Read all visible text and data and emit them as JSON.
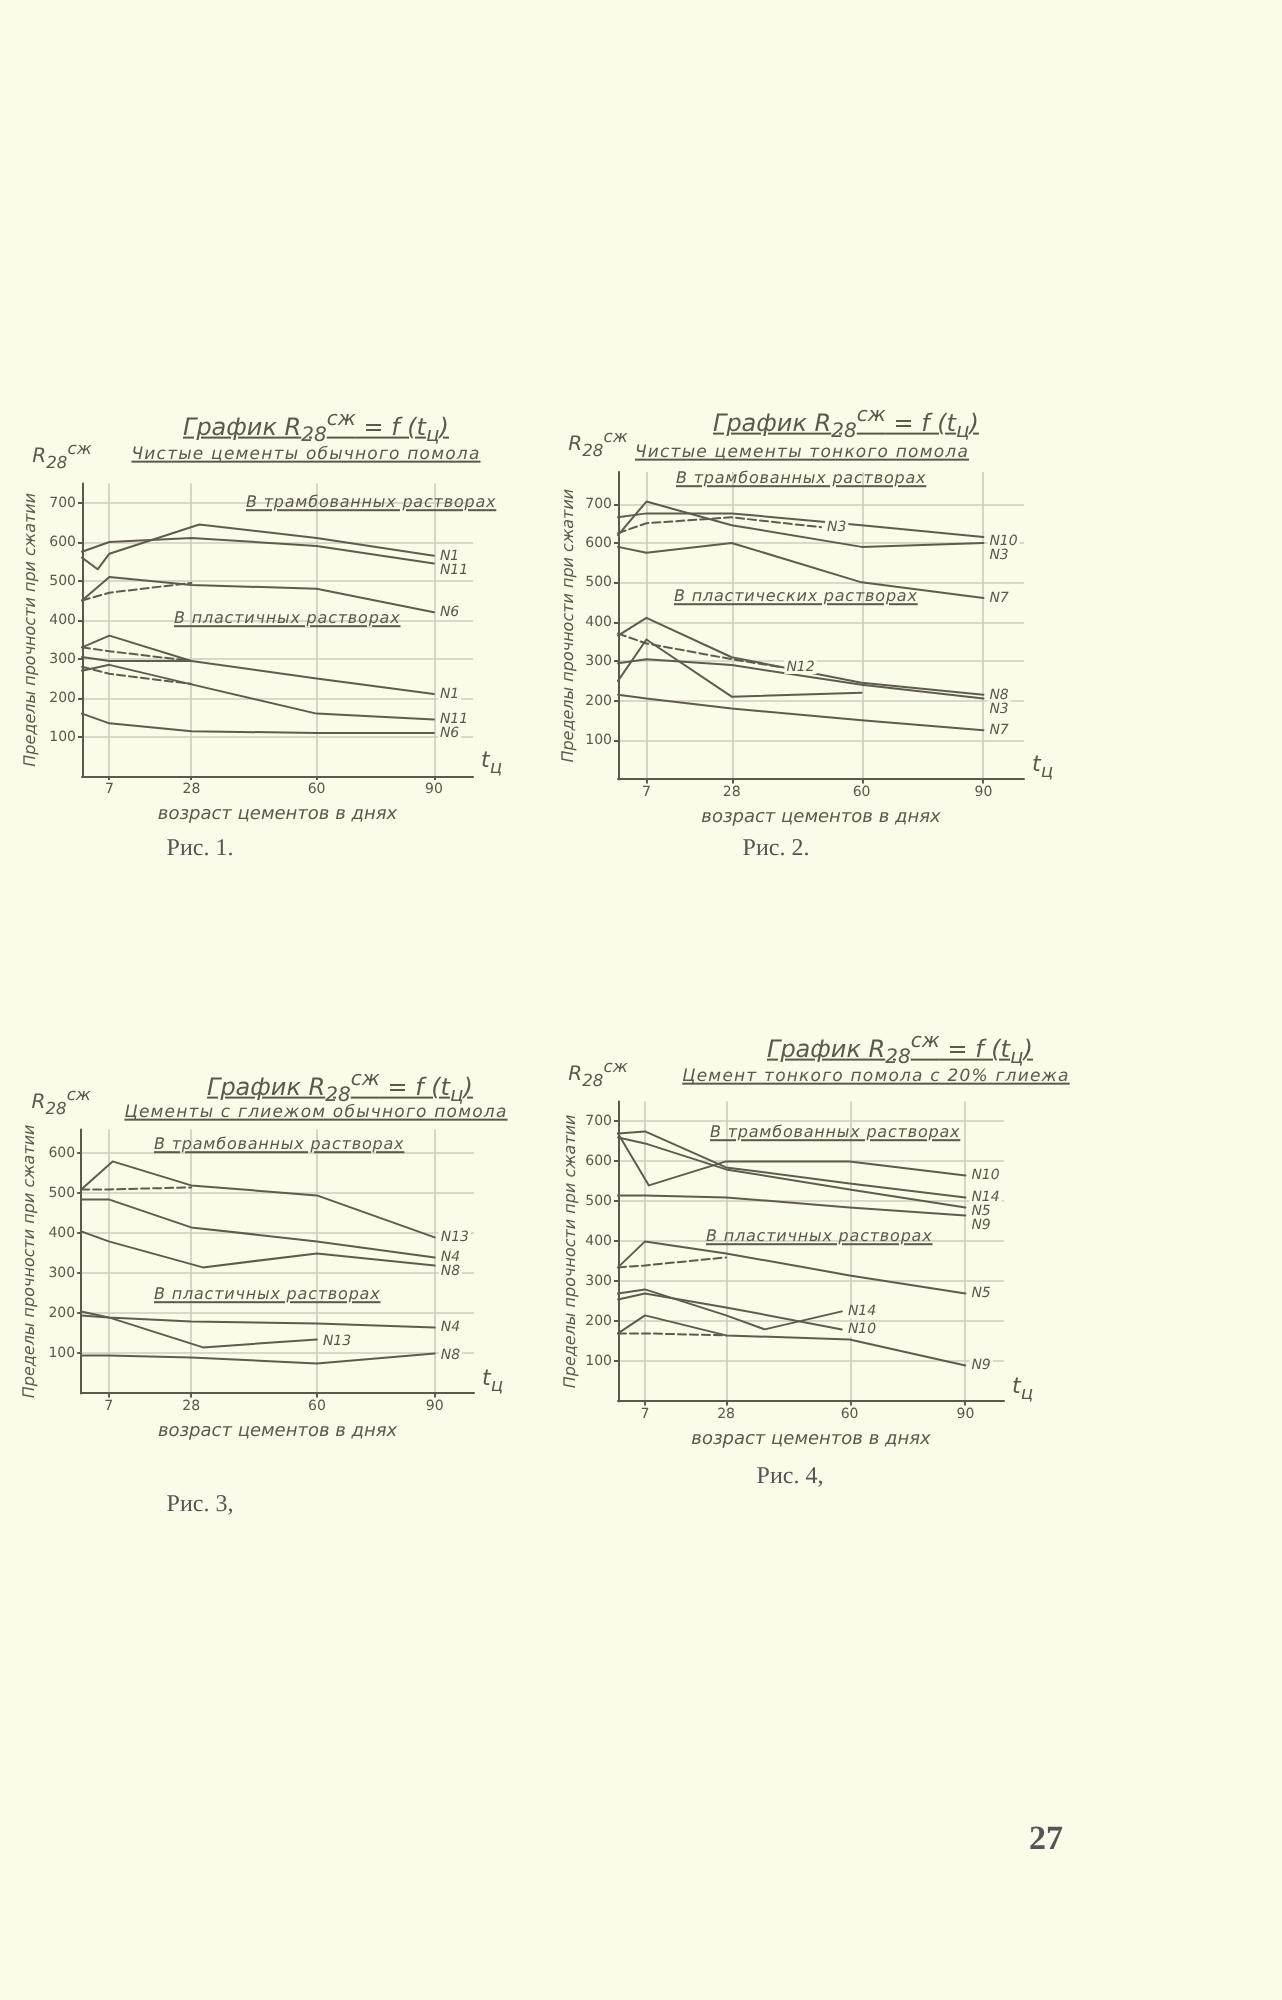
{
  "chart_data": [
    {
      "type": "line",
      "title": "График R$_{28}$$^{сж}$ = f (t$_{ц}$)",
      "subtitle": "Чистые цементы обычного помола",
      "xlabel": "возраст цементов в днях",
      "ylabel": "Пределы прочности при сжатии",
      "annotations": [
        "R$_{28}$$^{сж}$",
        "t$_{ц}$",
        "Рис. 1.",
        "В трамбованных растворах",
        "В пластичных растворах"
      ],
      "x": [
        0,
        7,
        28,
        60,
        90
      ],
      "xlim": [
        0,
        100
      ],
      "xticks": [
        7,
        28,
        60,
        90
      ],
      "ylim": [
        0,
        750
      ],
      "yticks": [
        100,
        200,
        300,
        400,
        500,
        600,
        700
      ],
      "grid": true,
      "line_style": "solid",
      "series": [
        {
          "name": "N1",
          "color": "#5f5b4f",
          "x": [
            0,
            4,
            7,
            30,
            60,
            90
          ],
          "values": [
            560,
            530,
            570,
            645,
            610,
            565
          ]
        },
        {
          "name": "N11",
          "color": "#5f5b4f",
          "values": [
            575,
            600,
            610,
            590,
            545
          ]
        },
        {
          "name": "N6",
          "color": "#5f5b4f",
          "values": [
            450,
            510,
            490,
            480,
            420
          ]
        },
        {
          "color": "#5f5b4f",
          "x": [
            0,
            7,
            28
          ],
          "values": [
            450,
            470,
            495
          ],
          "line_style": "dashed"
        },
        {
          "name": "N1",
          "color": "#5f5b4f",
          "values": [
            330,
            360,
            295,
            250,
            210
          ]
        },
        {
          "name": "N11",
          "color": "#5f5b4f",
          "values": [
            270,
            285,
            235,
            160,
            145
          ]
        },
        {
          "name": "N6",
          "color": "#5f5b4f",
          "values": [
            160,
            135,
            115,
            110,
            110
          ]
        },
        {
          "color": "#5f5b4f",
          "x": [
            0,
            7,
            28
          ],
          "values": [
            330,
            320,
            295
          ],
          "line_style": "dashed"
        },
        {
          "color": "#5f5b4f",
          "x": [
            0,
            7,
            28
          ],
          "values": [
            280,
            262,
            236
          ],
          "line_style": "dashed"
        },
        {
          "color": "#5f5b4f",
          "x": [
            0,
            7,
            28
          ],
          "values": [
            305,
            295,
            295
          ]
        }
      ]
    },
    {
      "type": "line",
      "title": "График R$_{28}$$^{сж}$ = f (t$_{ц}$)",
      "subtitle": "Чистые цементы тонкого помола",
      "xlabel": "возраст цементов в днях",
      "ylabel": "Пределы прочности при сжатии",
      "annotations": [
        "R$_{28}$$^{сж}$",
        "t$_{ц}$",
        "Рис. 2.",
        "В трамбованных растворах",
        "В пластических растворах"
      ],
      "x": [
        0,
        7,
        28,
        60,
        90
      ],
      "xlim": [
        0,
        100
      ],
      "xticks": [
        7,
        28,
        60,
        90
      ],
      "ylim": [
        0,
        780
      ],
      "yticks": [
        100,
        200,
        300,
        400,
        500,
        600,
        700
      ],
      "grid": true,
      "line_style": "solid",
      "series": [
        {
          "name": "N10",
          "color": "#5f5b4f",
          "values": [
            665,
            675,
            675,
            645,
            615
          ]
        },
        {
          "name": "N3",
          "color": "#5f5b4f",
          "values": [
            620,
            705,
            645,
            590,
            600
          ]
        },
        {
          "name": "N7",
          "color": "#5f5b4f",
          "values": [
            590,
            575,
            600,
            500,
            460
          ]
        },
        {
          "name": "N3",
          "color": "#5f5b4f",
          "x": [
            0,
            7,
            28,
            50
          ],
          "values": [
            625,
            650,
            665,
            640
          ],
          "line_style": "dashed"
        },
        {
          "name": "N8",
          "color": "#5f5b4f",
          "values": [
            365,
            410,
            310,
            245,
            215
          ]
        },
        {
          "name": "N3",
          "color": "#5f5b4f",
          "values": [
            295,
            305,
            290,
            240,
            205
          ]
        },
        {
          "color": "#5f5b4f",
          "x": [
            0,
            7,
            28,
            60
          ],
          "values": [
            250,
            355,
            210,
            220
          ]
        },
        {
          "name": "N7",
          "color": "#5f5b4f",
          "values": [
            215,
            205,
            180,
            150,
            125
          ]
        },
        {
          "name": "N12",
          "color": "#5f5b4f",
          "x": [
            0,
            7,
            28,
            40
          ],
          "values": [
            370,
            345,
            305,
            285
          ],
          "line_style": "dashed"
        }
      ]
    },
    {
      "type": "line",
      "title": "График R$_{28}$$^{сж}$ = f (t$_{ц}$)",
      "subtitle": "Цементы с глиежом обычного помола",
      "xlabel": "возраст цементов в днях",
      "ylabel": "Пределы прочности при сжатии",
      "annotations": [
        "R$_{28}$$^{сж}$",
        "t$_{ц}$",
        "Рис. 3,",
        "В трамбованных растворах",
        "В пластичных растворах"
      ],
      "x": [
        0,
        7,
        28,
        60,
        90
      ],
      "xlim": [
        0,
        100
      ],
      "xticks": [
        7,
        28,
        60,
        90
      ],
      "ylim": [
        0,
        660
      ],
      "yticks": [
        100,
        200,
        300,
        400,
        500,
        600
      ],
      "grid": true,
      "line_style": "solid",
      "series": [
        {
          "name": "N13",
          "color": "#5f5b4f",
          "x": [
            0,
            8,
            28,
            60,
            90
          ],
          "values": [
            510,
            580,
            520,
            495,
            390
          ]
        },
        {
          "color": "#5f5b4f",
          "x": [
            0,
            7,
            28
          ],
          "values": [
            510,
            510,
            515
          ],
          "line_style": "dashed"
        },
        {
          "name": "N4",
          "color": "#5f5b4f",
          "values": [
            485,
            485,
            415,
            380,
            340
          ]
        },
        {
          "name": "N8",
          "color": "#5f5b4f",
          "x": [
            0,
            7,
            31,
            60,
            90
          ],
          "values": [
            405,
            380,
            315,
            350,
            320
          ]
        },
        {
          "name": "N4",
          "color": "#5f5b4f",
          "values": [
            195,
            190,
            180,
            175,
            165
          ]
        },
        {
          "name": "N13",
          "color": "#5f5b4f",
          "x": [
            0,
            7,
            31,
            60
          ],
          "values": [
            205,
            190,
            115,
            135
          ]
        },
        {
          "name": "N8",
          "color": "#5f5b4f",
          "values": [
            95,
            95,
            90,
            75,
            100
          ]
        }
      ]
    },
    {
      "type": "line",
      "title": "График R$_{28}$$^{сж}$ = f (t$_{ц}$)",
      "subtitle": "Цемент тонкого помола с 20% глиежа",
      "xlabel": "возраст цементов в днях",
      "ylabel": "Пределы прочности при сжатии",
      "annotations": [
        "R$_{28}$$^{сж}$",
        "t$_{ц}$",
        "Рис. 4,",
        "В трамбованных растворах",
        "В пластичных растворах",
        "27"
      ],
      "x": [
        0,
        7,
        28,
        60,
        90
      ],
      "xlim": [
        0,
        100
      ],
      "xticks": [
        7,
        28,
        60,
        90
      ],
      "ylim": [
        0,
        750
      ],
      "yticks": [
        100,
        200,
        300,
        400,
        500,
        600,
        700
      ],
      "grid": true,
      "line_style": "solid",
      "series": [
        {
          "name": "N10",
          "color": "#5f5b4f",
          "x": [
            0,
            8,
            28,
            60,
            90
          ],
          "values": [
            670,
            540,
            600,
            600,
            565
          ]
        },
        {
          "name": "N14",
          "color": "#5f5b4f",
          "values": [
            670,
            675,
            585,
            545,
            510
          ]
        },
        {
          "name": "N5",
          "color": "#5f5b4f",
          "values": [
            660,
            645,
            580,
            530,
            485
          ]
        },
        {
          "name": "N9",
          "color": "#5f5b4f",
          "values": [
            515,
            515,
            510,
            485,
            465
          ]
        },
        {
          "name": "N5",
          "color": "#5f5b4f",
          "values": [
            335,
            400,
            370,
            315,
            270
          ]
        },
        {
          "color": "#5f5b4f",
          "x": [
            0,
            7,
            28
          ],
          "values": [
            335,
            340,
            360
          ],
          "line_style": "dashed"
        },
        {
          "name": "N14",
          "color": "#5f5b4f",
          "x": [
            0,
            7,
            28,
            38,
            58
          ],
          "values": [
            270,
            280,
            215,
            180,
            225
          ]
        },
        {
          "name": "N10",
          "color": "#5f5b4f",
          "x": [
            0,
            7,
            28,
            58
          ],
          "values": [
            255,
            270,
            235,
            180
          ]
        },
        {
          "name": "N9",
          "color": "#5f5b4f",
          "values": [
            170,
            215,
            165,
            155,
            90
          ]
        },
        {
          "color": "#5f5b4f",
          "x": [
            0,
            7,
            28
          ],
          "values": [
            170,
            170,
            165
          ],
          "line_style": "dashed"
        }
      ]
    }
  ]
}
